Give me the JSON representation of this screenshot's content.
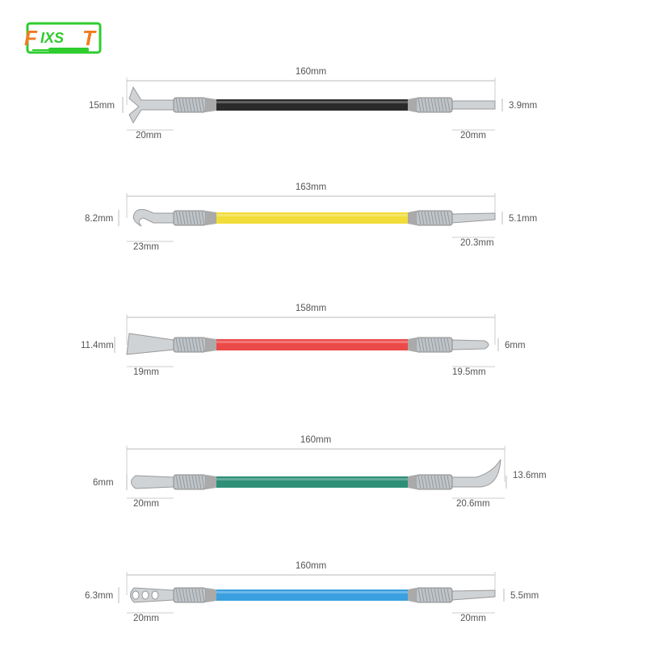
{
  "logo": {
    "text": "FIXST",
    "color_primary": "#f07c1e",
    "color_secondary": "#2ecc2e"
  },
  "tools": [
    {
      "handle_color": "#2a2a2a",
      "total_length": "160mm",
      "left_height": "15mm",
      "left_length": "20mm",
      "right_length": "20mm",
      "right_height": "3.9mm",
      "left_tip": "fork",
      "right_tip": "flat"
    },
    {
      "handle_color": "#f2dc3a",
      "total_length": "163mm",
      "left_height": "8.2mm",
      "left_length": "23mm",
      "right_length": "20.3mm",
      "right_height": "5.1mm",
      "left_tip": "hook",
      "right_tip": "angled"
    },
    {
      "handle_color": "#ec4a48",
      "total_length": "158mm",
      "left_height": "11.4mm",
      "left_length": "19mm",
      "right_length": "19.5mm",
      "right_height": "6mm",
      "left_tip": "wide-spatula",
      "right_tip": "round"
    },
    {
      "handle_color": "#2f8f78",
      "total_length": "160mm",
      "left_height": "6mm",
      "left_length": "20mm",
      "right_length": "20.6mm",
      "right_height": "13.6mm",
      "left_tip": "round",
      "right_tip": "curved-blade"
    },
    {
      "handle_color": "#3aa0e0",
      "total_length": "160mm",
      "left_height": "6.3mm",
      "left_length": "20mm",
      "right_length": "20mm",
      "right_height": "5.5mm",
      "left_tip": "slotted",
      "right_tip": "angled"
    }
  ]
}
